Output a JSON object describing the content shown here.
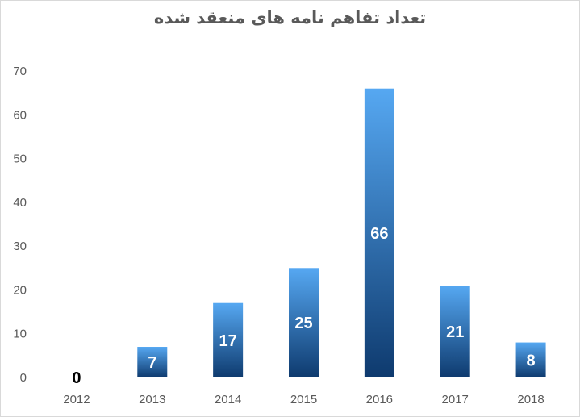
{
  "chart_data": {
    "type": "bar",
    "title": "تعداد تفاهم نامه های منعقد شده",
    "categories": [
      "2012",
      "2013",
      "2014",
      "2015",
      "2016",
      "2017",
      "2018"
    ],
    "values": [
      0,
      7,
      17,
      25,
      66,
      21,
      8
    ],
    "data_labels": [
      "0",
      "7",
      "17",
      "25",
      "66",
      "21",
      "8"
    ],
    "ylim": [
      0,
      70
    ],
    "yticks": [
      "0",
      "10",
      "20",
      "30",
      "40",
      "50",
      "60",
      "70"
    ],
    "grid": false,
    "legend": "none",
    "colors": {
      "bar_top": "#56a8f2",
      "bar_bottom": "#0e3a6e",
      "label_inside": "#ffffff",
      "label_zero": "#000000"
    }
  }
}
